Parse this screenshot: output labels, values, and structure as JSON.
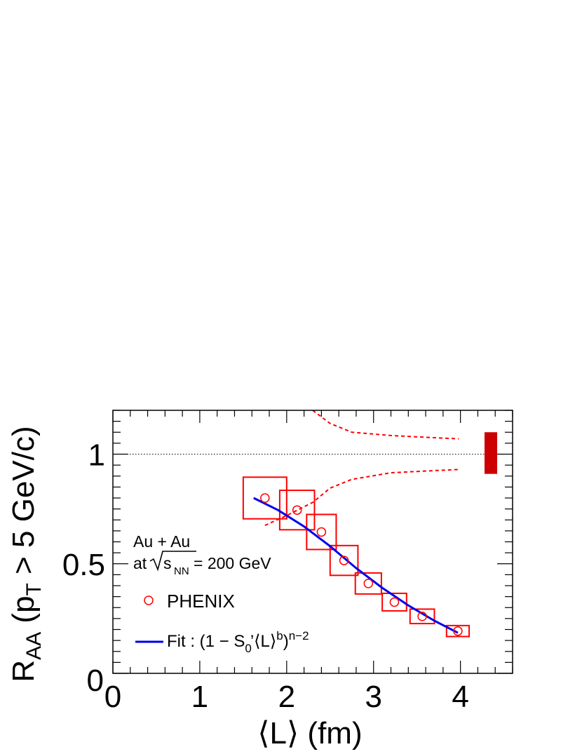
{
  "chart_data": {
    "type": "scatter",
    "xlabel": "⟨L⟩ (fm)",
    "ylabel": {
      "main": "R",
      "main_sub": "AA",
      "open": " (p",
      "p_sub": "T",
      "rest": " > 5 GeV/c)"
    },
    "xlim": [
      0,
      4.6
    ],
    "ylim": [
      0,
      1.2
    ],
    "x_ticks": [
      0,
      1,
      2,
      3,
      4
    ],
    "x_tick_labels": [
      "0",
      "1",
      "2",
      "3",
      "4"
    ],
    "y_ticks": [
      0,
      0.5,
      1
    ],
    "y_tick_labels": [
      "0",
      "0.5",
      "1"
    ],
    "corner_zero": "0",
    "reference_line_y": 1.0,
    "global_uncertainty_box": {
      "x": 4.35,
      "y_low": 0.91,
      "y_high": 1.1
    },
    "series": [
      {
        "name": "PHENIX",
        "color": "#ff0000",
        "points": [
          {
            "x": 1.75,
            "y": 0.8,
            "sx": 0.25,
            "sy": 0.095
          },
          {
            "x": 2.12,
            "y": 0.745,
            "sx": 0.2,
            "sy": 0.09
          },
          {
            "x": 2.4,
            "y": 0.645,
            "sx": 0.17,
            "sy": 0.08
          },
          {
            "x": 2.66,
            "y": 0.515,
            "sx": 0.16,
            "sy": 0.068
          },
          {
            "x": 2.94,
            "y": 0.41,
            "sx": 0.15,
            "sy": 0.048
          },
          {
            "x": 3.24,
            "y": 0.325,
            "sx": 0.14,
            "sy": 0.04
          },
          {
            "x": 3.56,
            "y": 0.26,
            "sx": 0.14,
            "sy": 0.033
          },
          {
            "x": 3.97,
            "y": 0.193,
            "sx": 0.13,
            "sy": 0.025
          }
        ]
      },
      {
        "name": "Fit",
        "color": "#0000ee",
        "x": [
          1.62,
          1.9,
          2.2,
          2.5,
          2.8,
          3.1,
          3.4,
          3.7,
          3.97
        ],
        "y": [
          0.8,
          0.745,
          0.67,
          0.58,
          0.48,
          0.39,
          0.31,
          0.24,
          0.185
        ]
      },
      {
        "name": "fit-band-upper",
        "color": "#ff0000",
        "x": [
          2.3,
          2.5,
          2.75,
          3.2,
          3.7,
          3.98
        ],
        "y": [
          1.2,
          1.14,
          1.1,
          1.085,
          1.075,
          1.07
        ]
      },
      {
        "name": "fit-band-lower",
        "color": "#ff0000",
        "x": [
          1.75,
          2.0,
          2.3,
          2.5,
          2.75,
          3.2,
          3.7,
          3.98
        ],
        "y": [
          0.675,
          0.72,
          0.78,
          0.845,
          0.885,
          0.915,
          0.925,
          0.93
        ]
      }
    ],
    "annotations": {
      "system": "Au + Au",
      "energy_prefix": "at",
      "energy_s": "s",
      "energy_sub": "NN",
      "energy_value": " = 200 GeV"
    },
    "legend": {
      "placement": "left",
      "phenix_label": "PHENIX",
      "fit": {
        "a": "Fit : (1 − S",
        "sub": "0",
        "b": "’⟨L⟩",
        "sup1": "b",
        "c": ")",
        "sup2": "n−2"
      }
    }
  }
}
